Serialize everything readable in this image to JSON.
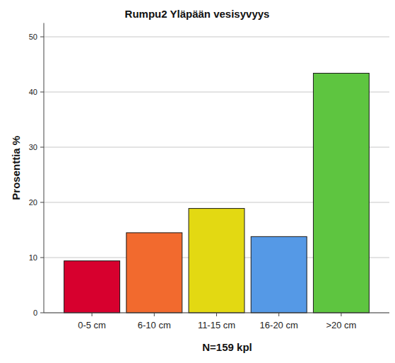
{
  "chart_data": {
    "type": "bar",
    "title": "Rumpu2 Yläpään vesisyvyys",
    "x_label": "N=159 kpl",
    "y_label": "Prosenttia %",
    "categories": [
      "0-5 cm",
      "6-10 cm",
      "11-15 cm",
      "16-20 cm",
      ">20 cm"
    ],
    "values": [
      9.4,
      14.5,
      18.9,
      13.8,
      43.4
    ],
    "colors": [
      "#d7002e",
      "#f26a2e",
      "#e3d912",
      "#5599e6",
      "#5ec540"
    ],
    "ylim": [
      0,
      52.5
    ],
    "yticks": [
      0,
      10,
      20,
      30,
      40,
      50
    ],
    "grid": true
  }
}
